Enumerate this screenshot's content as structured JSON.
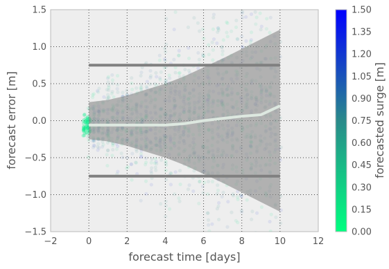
{
  "chart_data": {
    "type": "scatter",
    "xlabel": "forecast time [days]",
    "ylabel": "forecast error [m]",
    "xlim": [
      -2,
      12
    ],
    "ylim": [
      -1.5,
      1.5
    ],
    "xticks": [
      -2,
      0,
      2,
      4,
      6,
      8,
      10,
      12
    ],
    "yticks": [
      -1.5,
      -1.0,
      -0.5,
      0.0,
      0.5,
      1.0,
      1.5
    ],
    "xtick_labels": [
      "−2",
      "0",
      "2",
      "4",
      "6",
      "8",
      "10",
      "12"
    ],
    "ytick_labels": [
      "−1.5",
      "−1.0",
      "−0.5",
      "0.0",
      "0.5",
      "1.0",
      "1.5"
    ],
    "grid": true,
    "grid_style": "dotted",
    "background": "#eeeeee",
    "colorbar": {
      "label": "forecasted surge [m]",
      "range": [
        0.0,
        1.5
      ],
      "ticks": [
        0.0,
        0.15,
        0.3,
        0.45,
        0.6,
        0.75,
        0.9,
        1.05,
        1.2,
        1.35,
        1.5
      ],
      "tick_labels": [
        "0.00",
        "0.15",
        "0.30",
        "0.45",
        "0.60",
        "0.75",
        "0.90",
        "1.05",
        "1.20",
        "1.35",
        "1.50"
      ],
      "colormap": [
        "#00ff80",
        "#2a8a8a",
        "#0000ff"
      ]
    },
    "envelope": {
      "x": [
        0,
        1,
        2,
        3,
        4,
        5,
        6,
        7,
        8,
        9,
        10
      ],
      "upper": [
        0.25,
        0.28,
        0.34,
        0.42,
        0.5,
        0.6,
        0.72,
        0.84,
        0.97,
        1.1,
        1.23
      ],
      "lower": [
        -0.25,
        -0.28,
        -0.34,
        -0.42,
        -0.5,
        -0.6,
        -0.72,
        -0.84,
        -0.97,
        -1.1,
        -1.23
      ],
      "color": "#888888"
    },
    "mean_line": {
      "x": [
        0,
        1,
        2,
        3,
        4,
        5,
        6,
        7,
        8,
        9,
        10
      ],
      "y": [
        -0.06,
        -0.06,
        -0.06,
        -0.06,
        -0.06,
        -0.04,
        0.0,
        0.03,
        0.06,
        0.08,
        0.2
      ],
      "color": "#dde8e0"
    },
    "thresholds": [
      {
        "y": 0.75,
        "x": [
          0,
          10
        ],
        "color": "#808080"
      },
      {
        "y": -0.75,
        "x": [
          0,
          10
        ],
        "color": "#808080"
      }
    ]
  }
}
